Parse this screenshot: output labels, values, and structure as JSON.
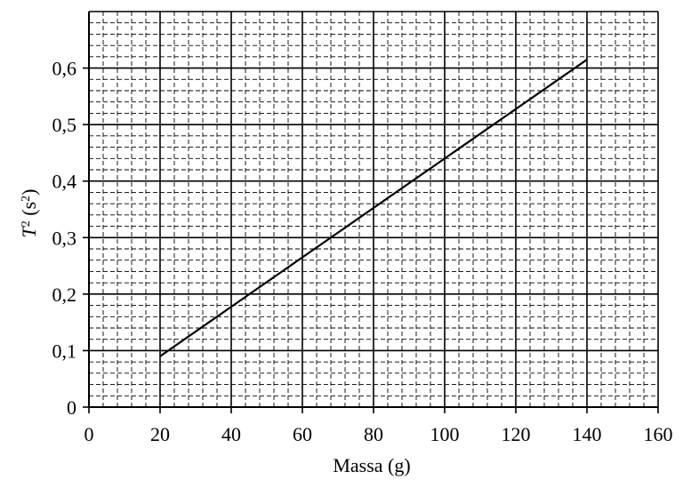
{
  "chart_data": {
    "type": "line",
    "title": "",
    "xlabel": "Massa (g)",
    "ylabel": {
      "var": "T",
      "sup": "2",
      "unit_open": " (s",
      "unit_sup": "2",
      "unit_close": ")"
    },
    "xlim": [
      0,
      160
    ],
    "ylim": [
      0,
      0.7
    ],
    "x_ticks": [
      0,
      20,
      40,
      60,
      80,
      100,
      120,
      140,
      160
    ],
    "x_tick_labels": [
      "0",
      "20",
      "40",
      "60",
      "80",
      "100",
      "120",
      "140",
      "160"
    ],
    "y_ticks": [
      0,
      0.1,
      0.2,
      0.3,
      0.4,
      0.5,
      0.6
    ],
    "y_tick_labels": [
      "0",
      "0,1",
      "0,2",
      "0,3",
      "0,4",
      "0,5",
      "0,6"
    ],
    "grid": true,
    "series": [
      {
        "x": [
          20,
          140
        ],
        "y": [
          0.09,
          0.615
        ]
      }
    ]
  }
}
